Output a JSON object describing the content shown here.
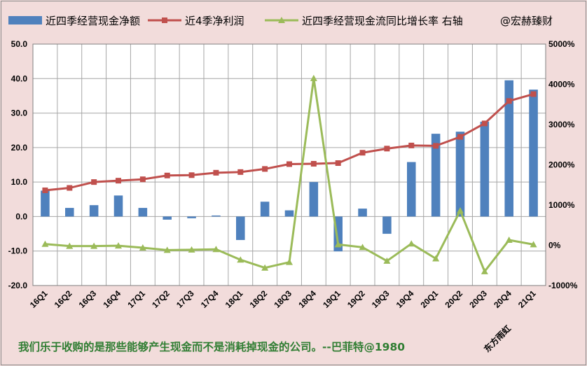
{
  "chart_data": {
    "type": "bar+line",
    "categories": [
      "16Q1",
      "16Q2",
      "16Q3",
      "16Q4",
      "17Q1",
      "17Q2",
      "17Q3",
      "17Q4",
      "18Q1",
      "18Q2",
      "18Q3",
      "18Q4",
      "19Q1",
      "19Q2",
      "19Q3",
      "19Q4",
      "20Q1",
      "20Q2",
      "20Q3",
      "20Q4",
      "21Q1"
    ],
    "series": [
      {
        "name": "近四季经营现金净额",
        "type": "bar",
        "axis": "left",
        "color": "#4f81bd",
        "values": [
          7.5,
          2.5,
          3.3,
          6.1,
          2.5,
          -0.9,
          -0.5,
          0.3,
          -6.8,
          4.3,
          1.8,
          10.0,
          -10.1,
          2.3,
          -5.0,
          15.8,
          24.0,
          24.6,
          27.5,
          39.5,
          36.8
        ]
      },
      {
        "name": "近4季净利润",
        "type": "line",
        "axis": "left",
        "color": "#c0504d",
        "values": [
          7.6,
          8.3,
          10.0,
          10.4,
          10.8,
          11.9,
          12.0,
          12.7,
          12.9,
          13.8,
          15.2,
          15.3,
          15.5,
          18.5,
          19.7,
          20.6,
          20.5,
          23.1,
          27.0,
          33.5,
          35.5
        ]
      },
      {
        "name": "近四季经营现金流同比增长率 右轴",
        "type": "line",
        "axis": "right",
        "color": "#9bbb59",
        "values": [
          30,
          -20,
          -20,
          -10,
          -60,
          -120,
          -110,
          -100,
          -360,
          -560,
          -420,
          4150,
          20,
          -50,
          -390,
          40,
          -330,
          860,
          -650,
          130,
          20
        ]
      }
    ],
    "y_left": {
      "min": -20,
      "max": 50,
      "step": 10,
      "tick_labels": [
        "-20.0",
        "-10.0",
        "0.0",
        "10.0",
        "20.0",
        "30.0",
        "40.0",
        "50.0"
      ]
    },
    "y_right": {
      "min": -1000,
      "max": 5000,
      "step": 1000,
      "tick_labels": [
        "-1000%",
        "0%",
        "1000%",
        "2000%",
        "3000%",
        "4000%",
        "5000%"
      ]
    },
    "grid": true,
    "legend_position": "top"
  },
  "legend": {
    "item1": "近四季经营现金净额",
    "item2": "近4季净利润",
    "item3": "近四季经营现金流同比增长率 右轴",
    "author": "@宏赫臻财"
  },
  "source_note": "东方雨虹",
  "quote": "我们乐于收购的是那些能够产生现金而不是消耗掉现金的公司。--巴菲特@1980",
  "colors": {
    "background": "#f2dcdb",
    "plot_background": "#ffffff",
    "gridline": "#a6a6a6"
  }
}
